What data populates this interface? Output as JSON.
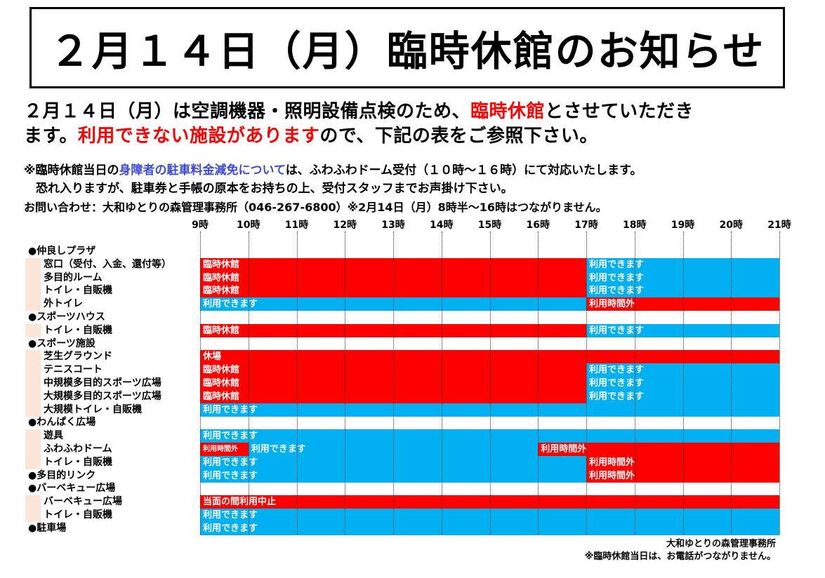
{
  "title": "２月１４日（月）臨時休館のお知らせ",
  "intro": {
    "line1": [
      {
        "text": "２月１４日（月）は空調機器・照明設備点検のため、",
        "color": "black"
      },
      {
        "text": "臨時休館",
        "color": "red"
      },
      {
        "text": "とさせていただき",
        "color": "black"
      }
    ],
    "line2": [
      {
        "text": "ます。",
        "color": "black"
      },
      {
        "text": "利用できない施設があります",
        "color": "red"
      },
      {
        "text": "ので、下記の表をご参照下さい。",
        "color": "black"
      }
    ]
  },
  "notes": {
    "line1": [
      {
        "text": "※臨時休館当日の",
        "color": "black"
      },
      {
        "text": "身障者の駐車料金減免について",
        "color": "blue"
      },
      {
        "text": "は、ふわふわドーム受付（１０時～１６時）にて対応いたします。",
        "color": "black"
      }
    ],
    "line2": "　恐れ入りますが、駐車券と手帳の原本をお持ちの上、受付スタッフまでお声掛け下さい。",
    "contact": "お問い合わせ：大和ゆとりの森管理事務所（046-267-6800）※2月14日（月）8時半～16時はつながりません。"
  },
  "colors": {
    "closed": "#ff0000",
    "open": "#00b0f0",
    "header_row": "#fbe5d6"
  },
  "hours": [
    "9時",
    "10時",
    "11時",
    "12時",
    "13時",
    "14時",
    "15時",
    "16時",
    "17時",
    "18時",
    "19時",
    "20時",
    "21時"
  ],
  "rows": [
    {
      "label": "●仲良しプラザ",
      "type": "header",
      "segments": []
    },
    {
      "label": "窓口（受付、入金、還付等）",
      "type": "sub",
      "segments": [
        {
          "from": 9,
          "to": 17,
          "status": "closed",
          "text": "臨時休館"
        },
        {
          "from": 17,
          "to": 21,
          "status": "open",
          "text": "利用できます"
        }
      ]
    },
    {
      "label": "多目的ルーム",
      "type": "sub",
      "segments": [
        {
          "from": 9,
          "to": 17,
          "status": "closed",
          "text": "臨時休館"
        },
        {
          "from": 17,
          "to": 21,
          "status": "open",
          "text": "利用できます"
        }
      ]
    },
    {
      "label": "トイレ・自販機",
      "type": "sub",
      "segments": [
        {
          "from": 9,
          "to": 17,
          "status": "closed",
          "text": "臨時休館"
        },
        {
          "from": 17,
          "to": 21,
          "status": "open",
          "text": "利用できます"
        }
      ]
    },
    {
      "label": "外トイレ",
      "type": "sub",
      "segments": [
        {
          "from": 9,
          "to": 17,
          "status": "open",
          "text": "利用できます"
        },
        {
          "from": 17,
          "to": 21,
          "status": "closed",
          "text": "利用時間外"
        }
      ]
    },
    {
      "label": "●スポーツハウス",
      "type": "header",
      "segments": []
    },
    {
      "label": "トイレ・自販機",
      "type": "sub",
      "segments": [
        {
          "from": 9,
          "to": 17,
          "status": "closed",
          "text": "臨時休館"
        },
        {
          "from": 17,
          "to": 21,
          "status": "open",
          "text": "利用できます"
        }
      ]
    },
    {
      "label": "●スポーツ施設",
      "type": "header",
      "segments": []
    },
    {
      "label": "芝生グラウンド",
      "type": "sub",
      "segments": [
        {
          "from": 9,
          "to": 21,
          "status": "closed",
          "text": "休場"
        }
      ]
    },
    {
      "label": "テニスコート",
      "type": "sub",
      "segments": [
        {
          "from": 9,
          "to": 17,
          "status": "closed",
          "text": "臨時休館"
        },
        {
          "from": 17,
          "to": 21,
          "status": "open",
          "text": "利用できます"
        }
      ]
    },
    {
      "label": "中規模多目的スポーツ広場",
      "type": "sub",
      "segments": [
        {
          "from": 9,
          "to": 17,
          "status": "closed",
          "text": "臨時休館"
        },
        {
          "from": 17,
          "to": 21,
          "status": "open",
          "text": "利用できます"
        }
      ]
    },
    {
      "label": "大規模多目的スポーツ広場",
      "type": "sub",
      "segments": [
        {
          "from": 9,
          "to": 17,
          "status": "closed",
          "text": "臨時休館"
        },
        {
          "from": 17,
          "to": 21,
          "status": "open",
          "text": "利用できます"
        }
      ]
    },
    {
      "label": "大規模トイレ・自販機",
      "type": "sub",
      "segments": [
        {
          "from": 9,
          "to": 21,
          "status": "open",
          "text": "利用できます"
        }
      ]
    },
    {
      "label": "●わんぱく広場",
      "type": "header",
      "segments": []
    },
    {
      "label": "遊具",
      "type": "sub",
      "segments": [
        {
          "from": 9,
          "to": 21,
          "status": "open",
          "text": "利用できます"
        }
      ]
    },
    {
      "label": "ふわふわドーム",
      "type": "sub",
      "segments": [
        {
          "from": 9,
          "to": 10,
          "status": "closed",
          "text": "利用時間外"
        },
        {
          "from": 10,
          "to": 16,
          "status": "open",
          "text": "利用できます"
        },
        {
          "from": 16,
          "to": 21,
          "status": "closed",
          "text": "利用時間外"
        }
      ]
    },
    {
      "label": "トイレ・自販機",
      "type": "sub",
      "segments": [
        {
          "from": 9,
          "to": 17,
          "status": "open",
          "text": "利用できます"
        },
        {
          "from": 17,
          "to": 21,
          "status": "closed",
          "text": "利用時間外"
        }
      ]
    },
    {
      "label": "●多目的リンク",
      "type": "header",
      "segments": [
        {
          "from": 9,
          "to": 17,
          "status": "open",
          "text": "利用できます"
        },
        {
          "from": 17,
          "to": 21,
          "status": "closed",
          "text": "利用時間外"
        }
      ]
    },
    {
      "label": "●バーベキュー広場",
      "type": "header",
      "segments": []
    },
    {
      "label": "バーベキュー広場",
      "type": "sub",
      "segments": [
        {
          "from": 9,
          "to": 21,
          "status": "closed",
          "text": "当面の間利用中止"
        }
      ]
    },
    {
      "label": "トイレ・自販機",
      "type": "sub",
      "segments": [
        {
          "from": 9,
          "to": 21,
          "status": "open",
          "text": "利用できます"
        }
      ]
    },
    {
      "label": "●駐車場",
      "type": "header",
      "segments": [
        {
          "from": 9,
          "to": 21,
          "status": "open",
          "text": "利用できます"
        }
      ]
    }
  ],
  "footer": {
    "office": "大和ゆとりの森管理事務所",
    "note": "※臨時休館当日は、お電話がつながりません。"
  }
}
